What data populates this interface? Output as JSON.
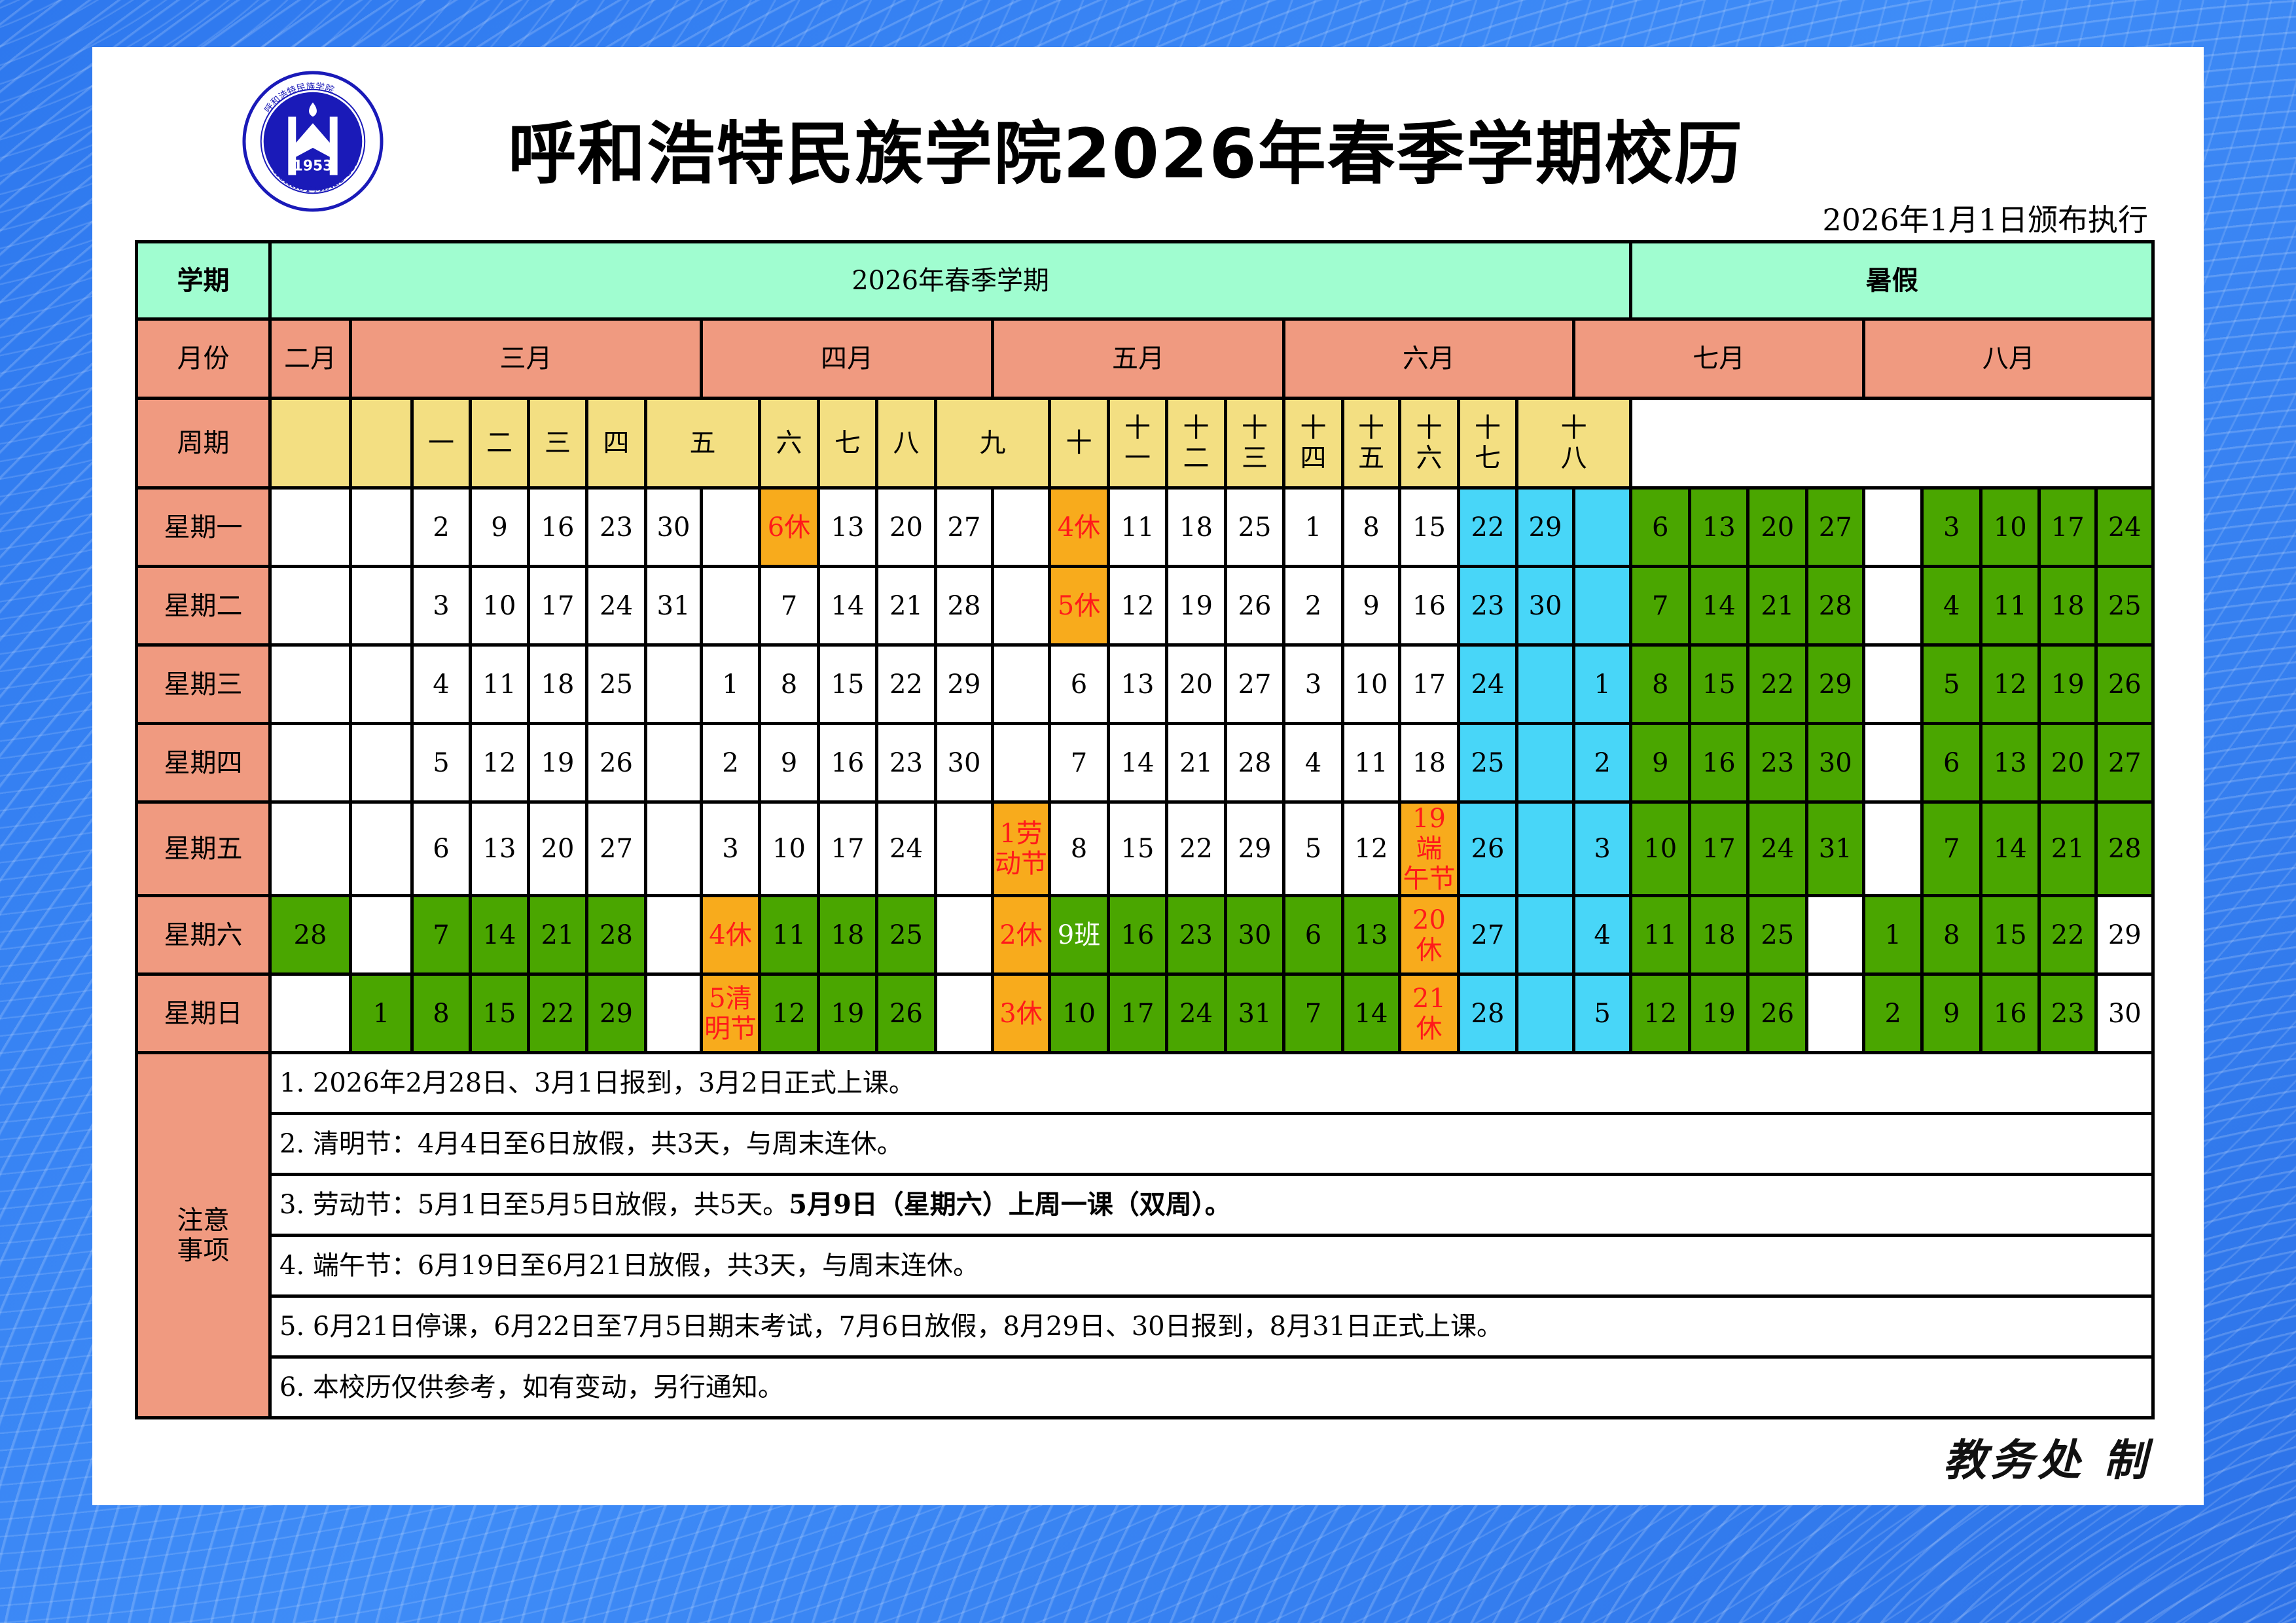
{
  "logo": {
    "year": "1953",
    "english": "HOHHOT MINZU COLLEGE",
    "chinese": "呼和浩特民族学院"
  },
  "title": "呼和浩特民族学院2026年春季学期校历",
  "issue_date": "2026年1月1日颁布执行",
  "signature": "教务处 制",
  "colors": {
    "semester_header": "#a0fdd0",
    "month_header": "#f09a80",
    "week_header": "#f3df82",
    "rest_day": "#4aa600",
    "holiday": "#f8ab1c",
    "exam": "#48d6f8",
    "holiday_text": "#ff1a1a"
  },
  "header": {
    "semester_label": "学期",
    "semester_name": "2026年春季学期",
    "summer_name": "暑假",
    "month_label": "月份",
    "months": [
      {
        "label": "二月",
        "span": 1
      },
      {
        "label": "三月",
        "span": 6
      },
      {
        "label": "四月",
        "span": 5
      },
      {
        "label": "五月",
        "span": 5
      },
      {
        "label": "六月",
        "span": 5
      },
      {
        "label": "七月",
        "span": 5
      },
      {
        "label": "八月",
        "span": 5
      }
    ],
    "week_label": "周期",
    "weeks": [
      {
        "label": "",
        "span": 1
      },
      {
        "label": "",
        "span": 1
      },
      {
        "label": "一",
        "span": 1
      },
      {
        "label": "二",
        "span": 1
      },
      {
        "label": "三",
        "span": 1
      },
      {
        "label": "四",
        "span": 1
      },
      {
        "label": "五",
        "span": 2
      },
      {
        "label": "六",
        "span": 1
      },
      {
        "label": "七",
        "span": 1
      },
      {
        "label": "八",
        "span": 1
      },
      {
        "label": "九",
        "span": 2
      },
      {
        "label": "十",
        "span": 1
      },
      {
        "label": "十\n一",
        "span": 1
      },
      {
        "label": "十\n二",
        "span": 1
      },
      {
        "label": "十\n三",
        "span": 1
      },
      {
        "label": "十\n四",
        "span": 1
      },
      {
        "label": "十\n五",
        "span": 1
      },
      {
        "label": "十\n六",
        "span": 1
      },
      {
        "label": "十\n七",
        "span": 1
      },
      {
        "label": "十\n八",
        "span": 2
      }
    ]
  },
  "days": [
    {
      "label": "星期一",
      "cells": [
        "w:",
        "w:",
        "w:2",
        "w:9",
        "w:16",
        "w:23",
        "w:30",
        "w:",
        "o:6休",
        "w:13",
        "w:20",
        "w:27",
        "w:",
        "o:4休",
        "w:11",
        "w:18",
        "w:25",
        "w:1",
        "w:8",
        "w:15",
        "b:22",
        "b:29",
        "b:",
        "g:6",
        "g:13",
        "g:20",
        "g:27",
        "w:",
        "g:3",
        "g:10",
        "g:17",
        "g:24"
      ]
    },
    {
      "label": "星期二",
      "cells": [
        "w:",
        "w:",
        "w:3",
        "w:10",
        "w:17",
        "w:24",
        "w:31",
        "w:",
        "w:7",
        "w:14",
        "w:21",
        "w:28",
        "w:",
        "o:5休",
        "w:12",
        "w:19",
        "w:26",
        "w:2",
        "w:9",
        "w:16",
        "b:23",
        "b:30",
        "b:",
        "g:7",
        "g:14",
        "g:21",
        "g:28",
        "w:",
        "g:4",
        "g:11",
        "g:18",
        "g:25"
      ]
    },
    {
      "label": "星期三",
      "cells": [
        "w:",
        "w:",
        "w:4",
        "w:11",
        "w:18",
        "w:25",
        "w:",
        "w:1",
        "w:8",
        "w:15",
        "w:22",
        "w:29",
        "w:",
        "w:6",
        "w:13",
        "w:20",
        "w:27",
        "w:3",
        "w:10",
        "w:17",
        "b:24",
        "b:",
        "b:1",
        "g:8",
        "g:15",
        "g:22",
        "g:29",
        "w:",
        "g:5",
        "g:12",
        "g:19",
        "g:26"
      ]
    },
    {
      "label": "星期四",
      "cells": [
        "w:",
        "w:",
        "w:5",
        "w:12",
        "w:19",
        "w:26",
        "w:",
        "w:2",
        "w:9",
        "w:16",
        "w:23",
        "w:30",
        "w:",
        "w:7",
        "w:14",
        "w:21",
        "w:28",
        "w:4",
        "w:11",
        "w:18",
        "b:25",
        "b:",
        "b:2",
        "g:9",
        "g:16",
        "g:23",
        "g:30",
        "w:",
        "g:6",
        "g:13",
        "g:20",
        "g:27"
      ]
    },
    {
      "label": "星期五",
      "cells": [
        "w:",
        "w:",
        "w:6",
        "w:13",
        "w:20",
        "w:27",
        "w:",
        "w:3",
        "w:10",
        "w:17",
        "w:24",
        "w:",
        "o:1劳\n动节",
        "w:8",
        "w:15",
        "w:22",
        "w:29",
        "w:5",
        "w:12",
        "o:19端\n午节",
        "b:26",
        "b:",
        "b:3",
        "g:10",
        "g:17",
        "g:24",
        "g:31",
        "w:",
        "g:7",
        "g:14",
        "g:21",
        "g:28"
      ]
    },
    {
      "label": "星期六",
      "cells": [
        "g:28",
        "w:",
        "g:7",
        "g:14",
        "g:21",
        "g:28",
        "w:",
        "o:4休",
        "g:11",
        "g:18",
        "g:25",
        "w:",
        "o:2休",
        "gw:9班",
        "g:16",
        "g:23",
        "g:30",
        "g:6",
        "g:13",
        "o:20\n休",
        "b:27",
        "b:",
        "b:4",
        "g:11",
        "g:18",
        "g:25",
        "w:",
        "g:1",
        "g:8",
        "g:15",
        "g:22",
        "w:29"
      ]
    },
    {
      "label": "星期日",
      "cells": [
        "w:",
        "g:1",
        "g:8",
        "g:15",
        "g:22",
        "g:29",
        "w:",
        "o:5清\n明节",
        "g:12",
        "g:19",
        "g:26",
        "w:",
        "o:3休",
        "g:10",
        "g:17",
        "g:24",
        "g:31",
        "g:7",
        "g:14",
        "o:21\n休",
        "b:28",
        "b:",
        "b:5",
        "g:12",
        "g:19",
        "g:26",
        "w:",
        "g:2",
        "g:9",
        "g:16",
        "g:23",
        "w:30"
      ]
    }
  ],
  "notes": {
    "label": "注意\n事项",
    "items": [
      {
        "text": "1.  2026年2月28日、3月1日报到，3月2日正式上课。",
        "bold": ""
      },
      {
        "text": "2.  清明节：4月4日至6日放假，共3天，与周末连休。",
        "bold": ""
      },
      {
        "text": "3.  劳动节：5月1日至5月5日放假，共5天。",
        "bold": "5月9日（星期六）上周一课（双周）。"
      },
      {
        "text": "4.  端午节：6月19日至6月21日放假，共3天，与周末连休。",
        "bold": ""
      },
      {
        "text": "5.  6月21日停课，6月22日至7月5日期末考试，7月6日放假，8月29日、30日报到，8月31日正式上课。",
        "bold": ""
      },
      {
        "text": "6.  本校历仅供参考，如有变动，另行通知。",
        "bold": ""
      }
    ]
  }
}
